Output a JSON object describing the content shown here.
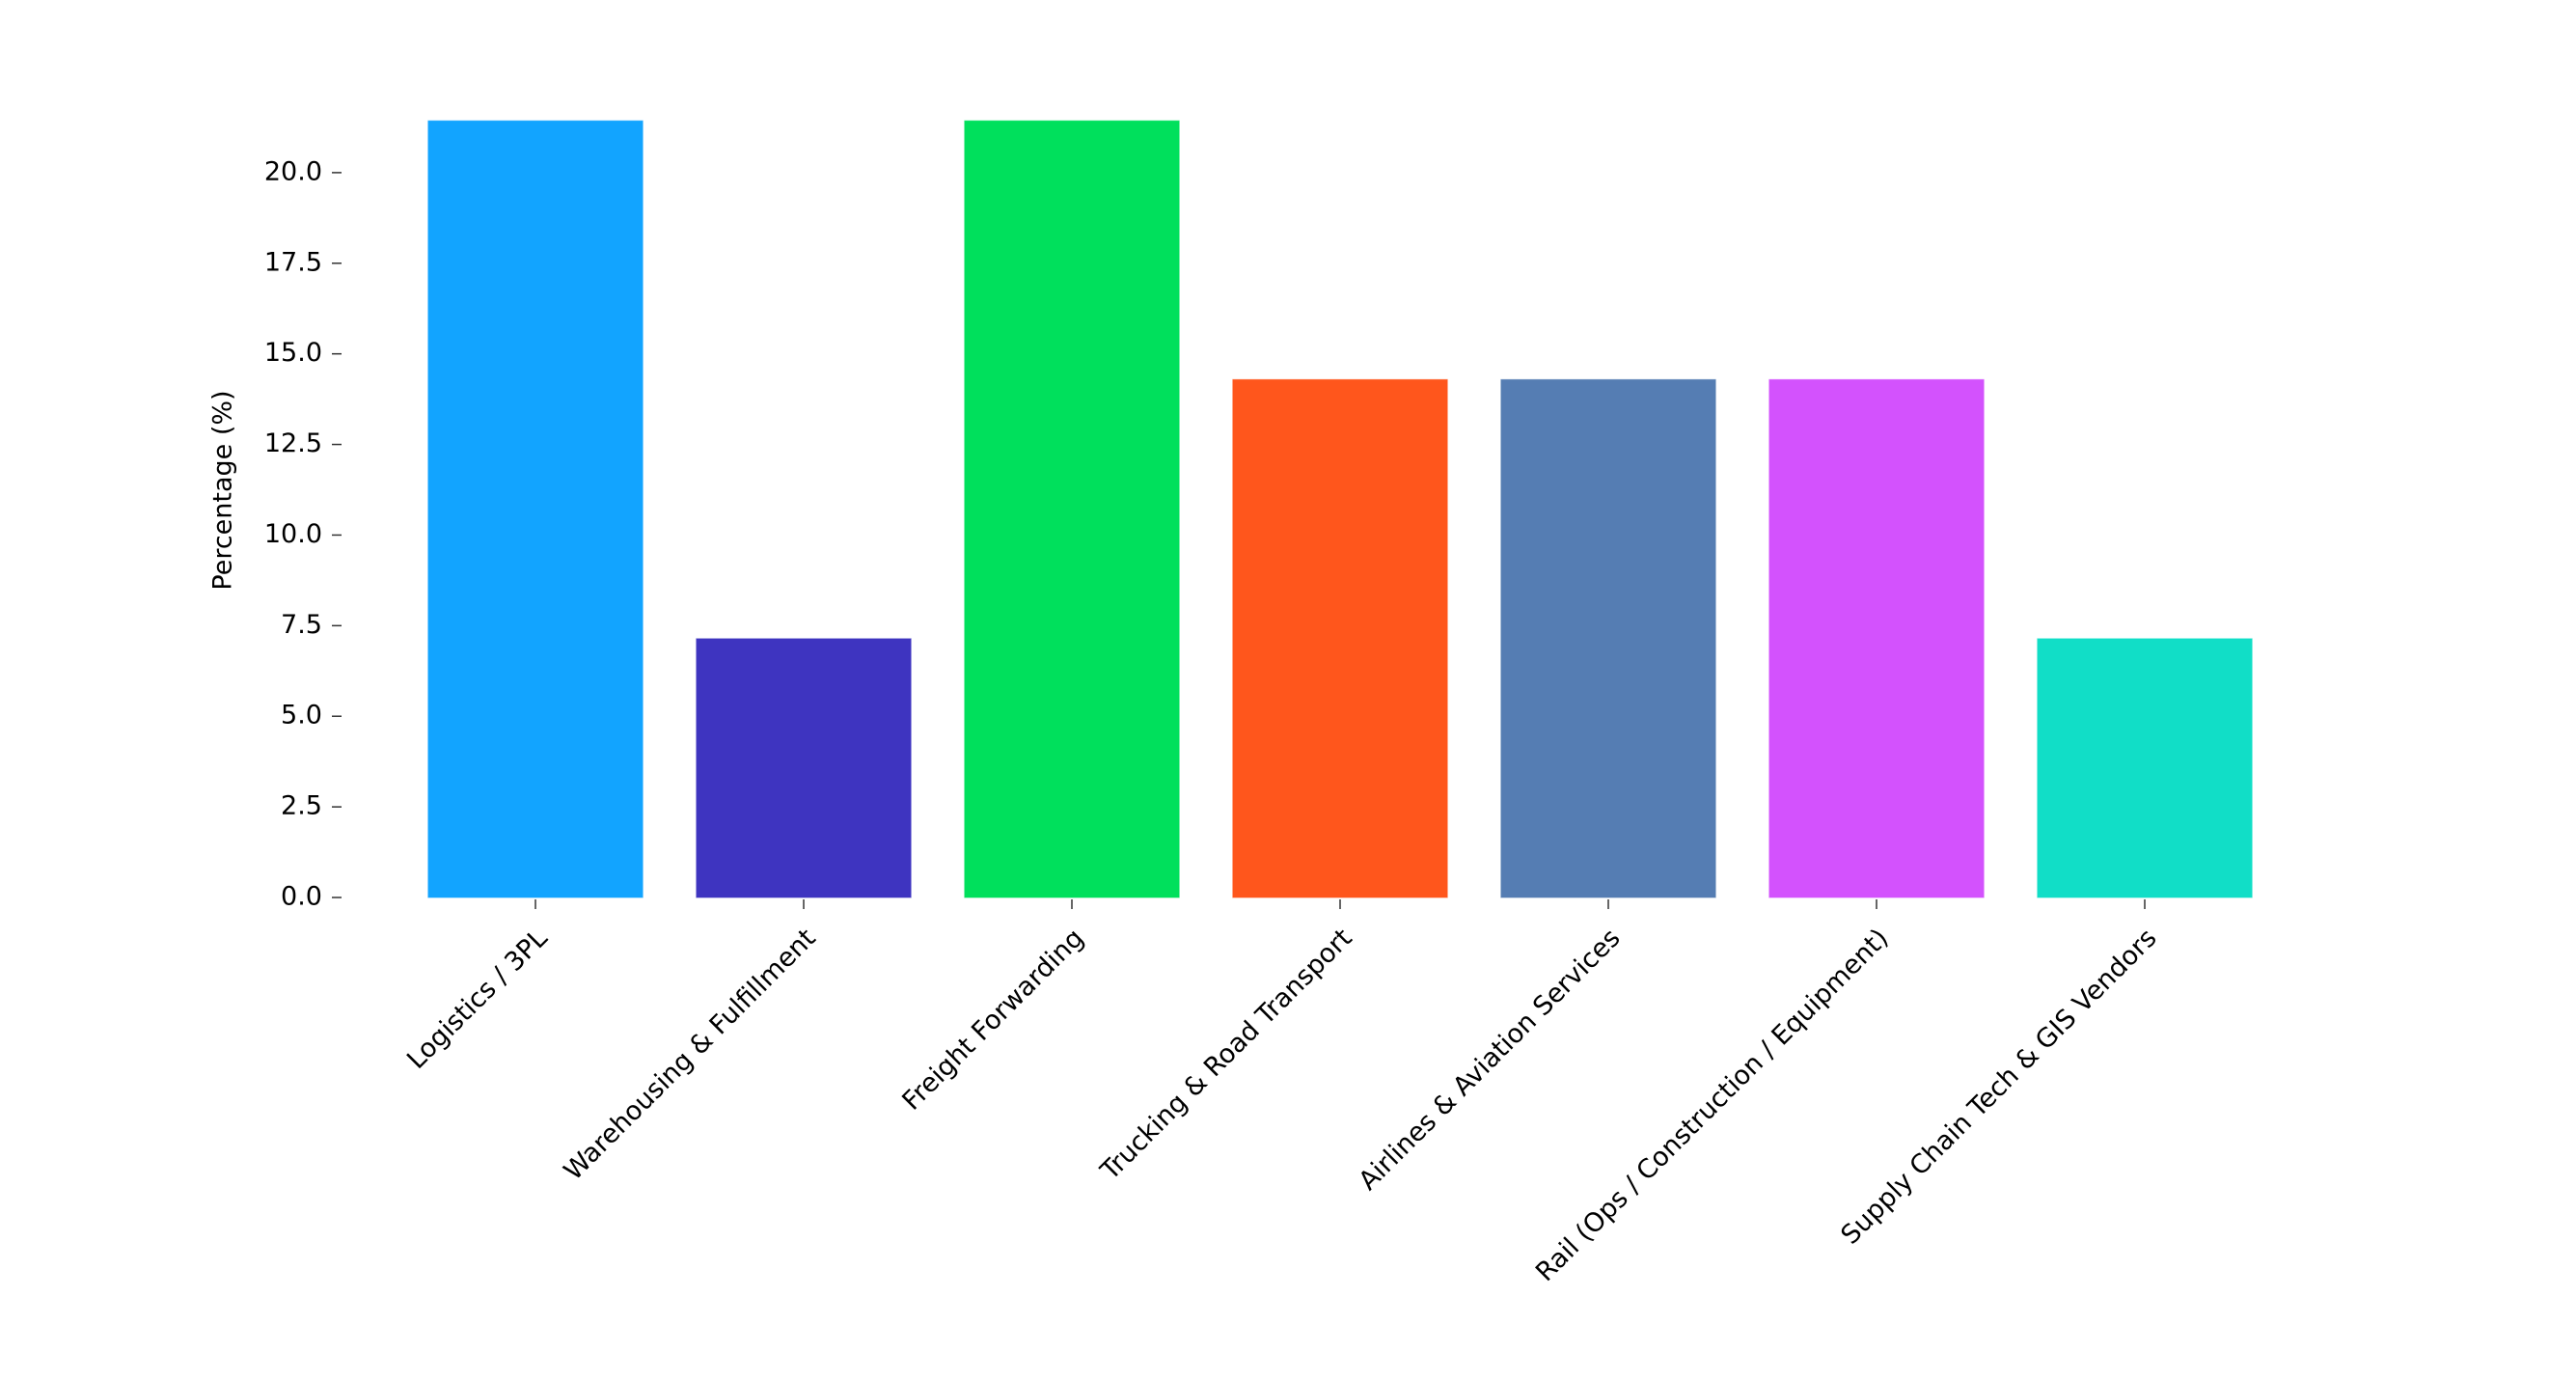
{
  "chart_data": {
    "type": "bar",
    "y_label": "Percentage (%)",
    "categories": [
      "Logistics / 3PL",
      "Warehousing & Fulfillment",
      "Freight Forwarding",
      "Trucking & Road Transport",
      "Airlines & Aviation Services",
      "Rail (Ops / Construction / Equipment)",
      "Supply Chain Tech & GIS Vendors"
    ],
    "values": [
      21.43,
      7.14,
      21.43,
      14.29,
      14.29,
      14.29,
      7.14
    ],
    "colors": [
      "#12a4ff",
      "#3e34c0",
      "#00e05c",
      "#ff561c",
      "#557db3",
      "#d352fd",
      "#11dec7"
    ],
    "ylim": [
      0,
      22.5
    ],
    "yticks": [
      {
        "value": 0,
        "label": "0.0"
      },
      2.5,
      {
        "value": 5,
        "label": "5.0"
      },
      7.5,
      {
        "value": 10,
        "label": "10.0"
      },
      12.5,
      {
        "value": 15,
        "label": "15.0"
      },
      17.5,
      {
        "value": 20,
        "label": "20.0"
      }
    ],
    "grid": false
  }
}
